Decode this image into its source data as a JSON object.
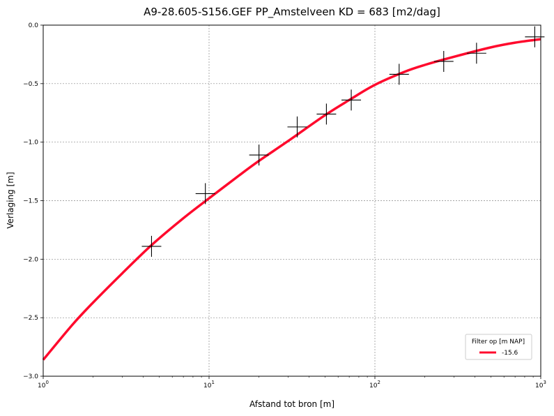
{
  "chart_data": {
    "type": "scatter",
    "title": "A9-28.605-S156.GEF PP_Amstelveen   KD = 683 [m2/dag]",
    "xlabel": "Afstand tot bron [m]",
    "ylabel": "Verlaging [m]",
    "x_scale": "log",
    "xlim": [
      1,
      1000
    ],
    "ylim": [
      -3.0,
      0.0
    ],
    "grid": true,
    "x_ticks": [
      {
        "value": 1,
        "base": "10",
        "exp": "0"
      },
      {
        "value": 10,
        "base": "10",
        "exp": "1"
      },
      {
        "value": 100,
        "base": "10",
        "exp": "2"
      },
      {
        "value": 1000,
        "base": "10",
        "exp": "3"
      }
    ],
    "y_ticks": [
      {
        "value": 0.0,
        "label": "0.0"
      },
      {
        "value": -0.5,
        "label": "−0.5"
      },
      {
        "value": -1.0,
        "label": "−1.0"
      },
      {
        "value": -1.5,
        "label": "−1.5"
      },
      {
        "value": -2.0,
        "label": "−2.0"
      },
      {
        "value": -2.5,
        "label": "−2.5"
      },
      {
        "value": -3.0,
        "label": "−3.0"
      }
    ],
    "measurements": {
      "marker": "plus",
      "color": "#000000",
      "points": [
        {
          "x": 4.5,
          "y": -1.89
        },
        {
          "x": 9.5,
          "y": -1.44
        },
        {
          "x": 20,
          "y": -1.11
        },
        {
          "x": 34,
          "y": -0.87
        },
        {
          "x": 51,
          "y": -0.76
        },
        {
          "x": 72,
          "y": -0.64
        },
        {
          "x": 140,
          "y": -0.42
        },
        {
          "x": 260,
          "y": -0.31
        },
        {
          "x": 410,
          "y": -0.24
        },
        {
          "x": 920,
          "y": -0.1
        }
      ]
    },
    "series": [
      {
        "name": "-15.6",
        "type": "line",
        "color": "#ff0a2d",
        "x": [
          1,
          1.5,
          2,
          3,
          4.5,
          7,
          10,
          15,
          20,
          30,
          50,
          70,
          100,
          150,
          200,
          300,
          500,
          700,
          1000
        ],
        "y": [
          -2.86,
          -2.56,
          -2.37,
          -2.12,
          -1.88,
          -1.65,
          -1.48,
          -1.29,
          -1.16,
          -0.99,
          -0.77,
          -0.64,
          -0.51,
          -0.4,
          -0.34,
          -0.27,
          -0.19,
          -0.15,
          -0.12
        ]
      }
    ],
    "legend": {
      "title": "Filter op [m NAP]",
      "placement": "lower-right",
      "entries": [
        "-15.6"
      ]
    }
  }
}
